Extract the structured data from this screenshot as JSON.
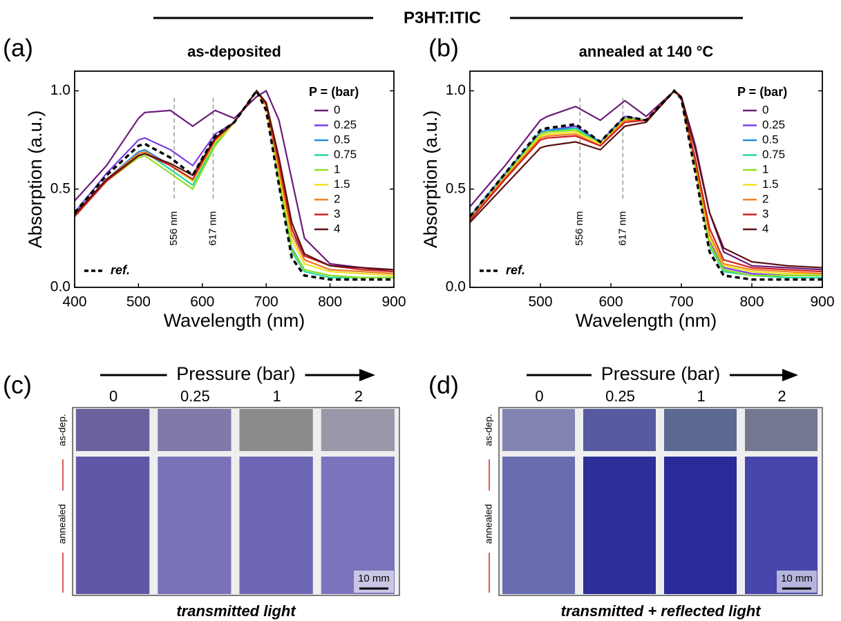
{
  "figure_title": "P3HT:ITIC",
  "chart_data": [
    {
      "type": "line",
      "panel": "(a)",
      "title": "as-deposited",
      "title_color": "#000000",
      "xlabel": "Wavelength (nm)",
      "ylabel": "Absorption (a.u.)",
      "xlim": [
        400,
        900
      ],
      "ylim": [
        0,
        1.1
      ],
      "xticks": [
        400,
        500,
        600,
        700,
        800,
        900
      ],
      "yticks": [
        {
          "value": 0,
          "label": "0.0"
        },
        0.5,
        {
          "value": 1,
          "label": "1.0"
        }
      ],
      "legend_title": "P = (bar)",
      "annotations": [
        {
          "x": 556,
          "label": "556 nm"
        },
        {
          "x": 617,
          "label": "617 nm"
        }
      ],
      "x": [
        400,
        450,
        500,
        510,
        550,
        585,
        620,
        650,
        685,
        700,
        720,
        740,
        760,
        800,
        850,
        900
      ],
      "series": [
        {
          "name": "0",
          "color": "#6a1b7a",
          "values": [
            0.44,
            0.62,
            0.86,
            0.89,
            0.9,
            0.82,
            0.9,
            0.86,
            0.97,
            1.0,
            0.85,
            0.55,
            0.25,
            0.12,
            0.1,
            0.08
          ]
        },
        {
          "name": "0.25",
          "color": "#7b3fe4",
          "values": [
            0.38,
            0.58,
            0.75,
            0.76,
            0.7,
            0.62,
            0.78,
            0.84,
            1.0,
            0.93,
            0.62,
            0.3,
            0.14,
            0.09,
            0.08,
            0.07
          ]
        },
        {
          "name": "0.5",
          "color": "#1f8fe0",
          "values": [
            0.37,
            0.55,
            0.69,
            0.7,
            0.62,
            0.54,
            0.74,
            0.84,
            1.0,
            0.92,
            0.55,
            0.2,
            0.09,
            0.06,
            0.05,
            0.05
          ]
        },
        {
          "name": "0.75",
          "color": "#20d8a0",
          "values": [
            0.37,
            0.55,
            0.68,
            0.69,
            0.6,
            0.52,
            0.73,
            0.84,
            1.0,
            0.92,
            0.54,
            0.18,
            0.08,
            0.05,
            0.05,
            0.05
          ]
        },
        {
          "name": "1",
          "color": "#8fe020",
          "values": [
            0.37,
            0.54,
            0.66,
            0.67,
            0.58,
            0.5,
            0.72,
            0.84,
            1.0,
            0.92,
            0.55,
            0.19,
            0.09,
            0.06,
            0.05,
            0.05
          ]
        },
        {
          "name": "1.5",
          "color": "#f0e020",
          "values": [
            0.37,
            0.55,
            0.68,
            0.69,
            0.62,
            0.54,
            0.74,
            0.84,
            1.0,
            0.92,
            0.58,
            0.24,
            0.12,
            0.08,
            0.07,
            0.06
          ]
        },
        {
          "name": "2",
          "color": "#f08020",
          "values": [
            0.37,
            0.55,
            0.68,
            0.69,
            0.62,
            0.55,
            0.75,
            0.84,
            1.0,
            0.93,
            0.6,
            0.27,
            0.14,
            0.09,
            0.08,
            0.07
          ]
        },
        {
          "name": "3",
          "color": "#d02020",
          "values": [
            0.36,
            0.54,
            0.67,
            0.68,
            0.62,
            0.55,
            0.75,
            0.84,
            1.0,
            0.93,
            0.63,
            0.3,
            0.16,
            0.11,
            0.09,
            0.08
          ]
        },
        {
          "name": "4",
          "color": "#5a1010",
          "values": [
            0.37,
            0.55,
            0.67,
            0.68,
            0.63,
            0.57,
            0.76,
            0.84,
            1.0,
            0.94,
            0.66,
            0.33,
            0.17,
            0.11,
            0.1,
            0.09
          ]
        },
        {
          "name": "ref.",
          "color": "#000000",
          "style": "dashed",
          "values": [
            0.38,
            0.57,
            0.72,
            0.73,
            0.66,
            0.57,
            0.77,
            0.84,
            1.0,
            0.9,
            0.52,
            0.15,
            0.06,
            0.04,
            0.04,
            0.04
          ]
        }
      ]
    },
    {
      "type": "line",
      "panel": "(b)",
      "title": "annealed at 140 °C",
      "title_color": "#d42020",
      "xlabel": "Wavelength (nm)",
      "ylabel": "Absorption (a.u.)",
      "xlim": [
        400,
        900
      ],
      "ylim": [
        0,
        1.1
      ],
      "xticks": [
        500,
        600,
        700,
        800,
        900
      ],
      "yticks": [
        {
          "value": 0,
          "label": "0.0"
        },
        0.5,
        {
          "value": 1,
          "label": "1.0"
        }
      ],
      "legend_title": "P = (bar)",
      "annotations": [
        {
          "x": 556,
          "label": "556 nm"
        },
        {
          "x": 617,
          "label": "617 nm"
        }
      ],
      "x": [
        400,
        450,
        500,
        510,
        550,
        585,
        620,
        650,
        690,
        700,
        720,
        740,
        760,
        800,
        850,
        900
      ],
      "series": [
        {
          "name": "0",
          "color": "#6a1b7a",
          "values": [
            0.41,
            0.62,
            0.85,
            0.87,
            0.92,
            0.85,
            0.95,
            0.87,
            1.0,
            0.97,
            0.72,
            0.38,
            0.18,
            0.11,
            0.1,
            0.09
          ]
        },
        {
          "name": "0.25",
          "color": "#7b3fe4",
          "values": [
            0.36,
            0.58,
            0.79,
            0.8,
            0.82,
            0.74,
            0.87,
            0.85,
            1.0,
            0.96,
            0.62,
            0.24,
            0.1,
            0.07,
            0.06,
            0.06
          ]
        },
        {
          "name": "0.5",
          "color": "#1f8fe0",
          "values": [
            0.36,
            0.58,
            0.79,
            0.8,
            0.81,
            0.74,
            0.86,
            0.85,
            1.0,
            0.96,
            0.6,
            0.22,
            0.09,
            0.06,
            0.06,
            0.06
          ]
        },
        {
          "name": "0.75",
          "color": "#20d8a0",
          "values": [
            0.35,
            0.57,
            0.78,
            0.79,
            0.81,
            0.73,
            0.86,
            0.85,
            1.0,
            0.96,
            0.6,
            0.21,
            0.08,
            0.06,
            0.05,
            0.05
          ]
        },
        {
          "name": "1",
          "color": "#8fe020",
          "values": [
            0.35,
            0.57,
            0.78,
            0.79,
            0.8,
            0.73,
            0.86,
            0.85,
            1.0,
            0.96,
            0.6,
            0.22,
            0.09,
            0.06,
            0.06,
            0.06
          ]
        },
        {
          "name": "1.5",
          "color": "#f0e020",
          "values": [
            0.35,
            0.56,
            0.77,
            0.78,
            0.79,
            0.73,
            0.85,
            0.85,
            1.0,
            0.96,
            0.62,
            0.25,
            0.11,
            0.08,
            0.07,
            0.07
          ]
        },
        {
          "name": "2",
          "color": "#f08020",
          "values": [
            0.35,
            0.56,
            0.76,
            0.77,
            0.78,
            0.72,
            0.85,
            0.85,
            1.0,
            0.96,
            0.63,
            0.27,
            0.12,
            0.09,
            0.08,
            0.07
          ]
        },
        {
          "name": "3",
          "color": "#d02020",
          "values": [
            0.34,
            0.55,
            0.75,
            0.76,
            0.77,
            0.72,
            0.84,
            0.85,
            1.0,
            0.96,
            0.65,
            0.3,
            0.14,
            0.1,
            0.09,
            0.08
          ]
        },
        {
          "name": "4",
          "color": "#5a1010",
          "values": [
            0.33,
            0.52,
            0.71,
            0.72,
            0.74,
            0.7,
            0.82,
            0.84,
            1.0,
            0.97,
            0.7,
            0.38,
            0.2,
            0.13,
            0.11,
            0.1
          ]
        },
        {
          "name": "ref.",
          "color": "#000000",
          "style": "dashed",
          "values": [
            0.36,
            0.58,
            0.8,
            0.81,
            0.83,
            0.74,
            0.87,
            0.85,
            1.0,
            0.96,
            0.58,
            0.18,
            0.06,
            0.04,
            0.04,
            0.04
          ]
        }
      ]
    }
  ],
  "photos": [
    {
      "panel": "(c)",
      "axis_label": "Pressure (bar)",
      "columns": [
        "0",
        "0.25",
        "1",
        "2"
      ],
      "rows": [
        "as-dep.",
        "annealed"
      ],
      "scale": "10 mm",
      "caption": "transmitted light"
    },
    {
      "panel": "(d)",
      "axis_label": "Pressure (bar)",
      "columns": [
        "0",
        "0.25",
        "1",
        "2"
      ],
      "rows": [
        "as-dep.",
        "annealed"
      ],
      "scale": "10 mm",
      "caption": "transmitted + reflected light"
    }
  ]
}
